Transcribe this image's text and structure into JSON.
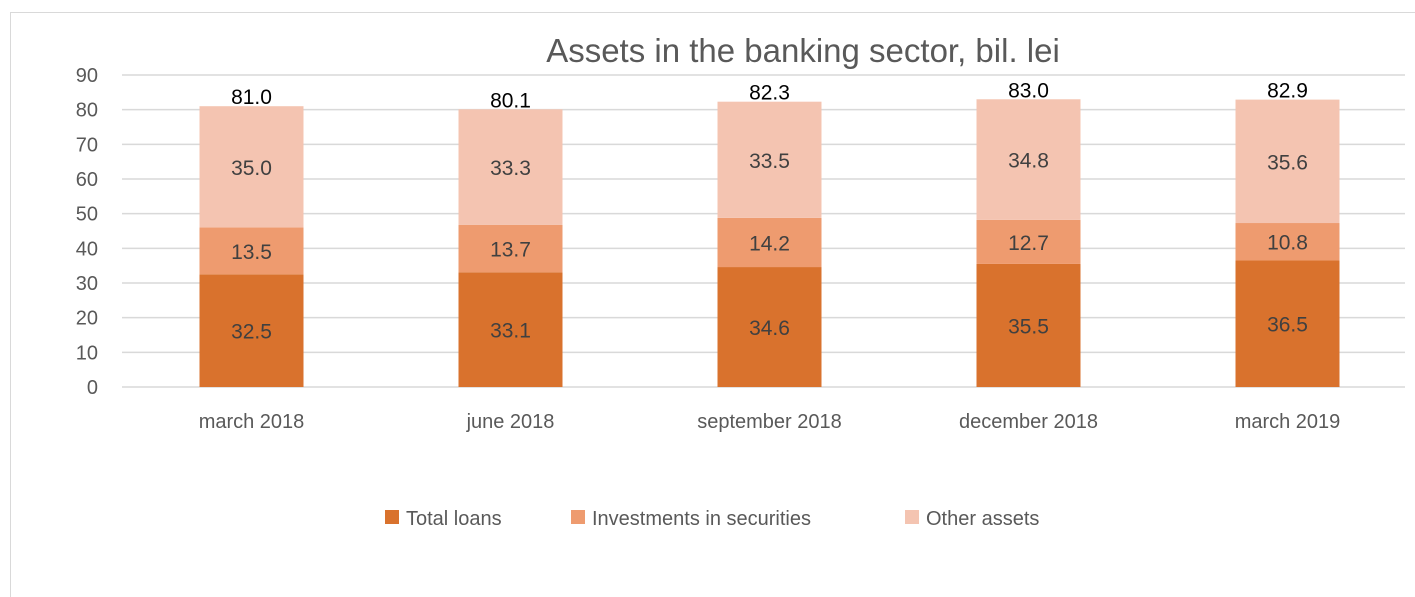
{
  "chart_data": {
    "type": "bar",
    "stacked": true,
    "title": "Assets in the banking sector, bil. lei",
    "xlabel": "",
    "ylabel": "",
    "ylim": [
      0,
      90
    ],
    "yticks": [
      0,
      10,
      20,
      30,
      40,
      50,
      60,
      70,
      80,
      90
    ],
    "grid": true,
    "legend_position": "bottom",
    "categories": [
      "march 2018",
      "june 2018",
      "september 2018",
      "december 2018",
      "march 2019"
    ],
    "series": [
      {
        "name": "Total loans",
        "color": "#d9722d",
        "values": [
          32.5,
          33.1,
          34.6,
          35.5,
          36.5
        ],
        "labels": [
          "32.5",
          "33.1",
          "34.6",
          "35.5",
          "36.5"
        ]
      },
      {
        "name": "Investments in securities",
        "color": "#ee9b6f",
        "values": [
          13.5,
          13.7,
          14.2,
          12.7,
          10.8
        ],
        "labels": [
          "13.5",
          "13.7",
          "14.2",
          "12.7",
          "10.8"
        ]
      },
      {
        "name": "Other assets",
        "color": "#f4c4b1",
        "values": [
          35.0,
          33.3,
          33.5,
          34.8,
          35.6
        ],
        "labels": [
          "35.0",
          "33.3",
          "33.5",
          "34.8",
          "35.6"
        ]
      }
    ],
    "totals": [
      81.0,
      80.1,
      82.3,
      83.0,
      82.9
    ],
    "total_labels": [
      "81.0",
      "80.1",
      "82.3",
      "83.0",
      "82.9"
    ]
  }
}
